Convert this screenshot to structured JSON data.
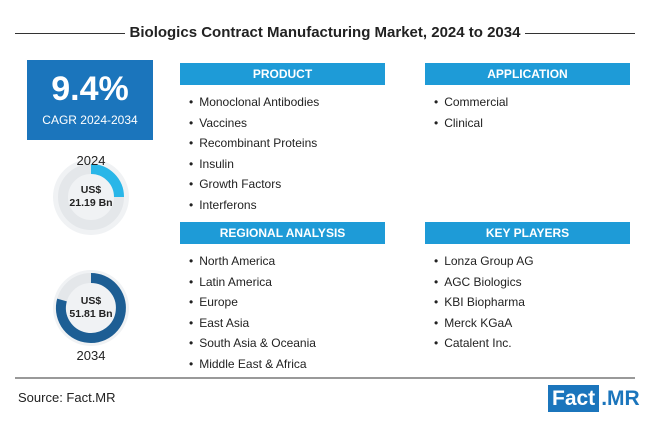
{
  "header": {
    "title": "Biologics Contract Manufacturing Market, 2024 to 2034"
  },
  "cagr": {
    "value": "9.4%",
    "label": "CAGR 2024-2034"
  },
  "market": [
    {
      "year": "2024",
      "currency": "US$",
      "amount": "21.19 Bn"
    },
    {
      "year": "2034",
      "currency": "US$",
      "amount": "51.81 Bn"
    }
  ],
  "sections": [
    {
      "title": "PRODUCT",
      "items": [
        "Monoclonal Antibodies",
        "Vaccines",
        "Recombinant Proteins",
        "Insulin",
        "Growth Factors",
        "Interferons"
      ]
    },
    {
      "title": "APPLICATION",
      "items": [
        "Commercial",
        "Clinical"
      ]
    },
    {
      "title": "REGIONAL ANALYSIS",
      "items": [
        "North America",
        "Latin America",
        "Europe",
        "East Asia",
        "South Asia & Oceania",
        "Middle East & Africa"
      ]
    },
    {
      "title": "KEY PLAYERS",
      "items": [
        "Lonza Group AG",
        "AGC Biologics",
        "KBI Biopharma",
        "Merck KGaA",
        "Catalent Inc."
      ]
    }
  ],
  "footer": {
    "source": "Source: Fact.MR",
    "logo_left": "Fact",
    "logo_right": ".MR"
  }
}
